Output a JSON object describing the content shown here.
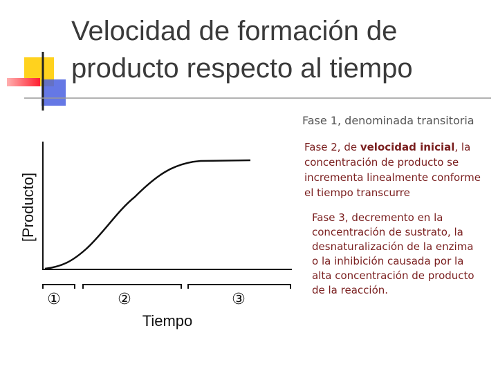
{
  "header": {
    "title_lines": [
      "Velocidad de formación de",
      "producto respecto al tiempo"
    ]
  },
  "diagram": {
    "y_label": "[Producto]",
    "x_label": "Tiempo",
    "phases": [
      "①",
      "②",
      "③"
    ]
  },
  "notes": {
    "phase1": "Fase 1, denominada transitoria",
    "phase2_lines": [
      [
        "Fase 2, de ",
        "velocidad inicial",
        ", la"
      ],
      [
        "concentración de producto se"
      ],
      [
        "incrementa linealmente conforme"
      ],
      [
        "el tiempo transcurre"
      ]
    ],
    "phase3_lines": [
      "Fase 3, decremento en la",
      "concentración de sustrato, la",
      "desnaturalización de la enzima",
      "o la inhibición causada por la",
      "alta concentración de producto",
      "de la reacción."
    ]
  }
}
